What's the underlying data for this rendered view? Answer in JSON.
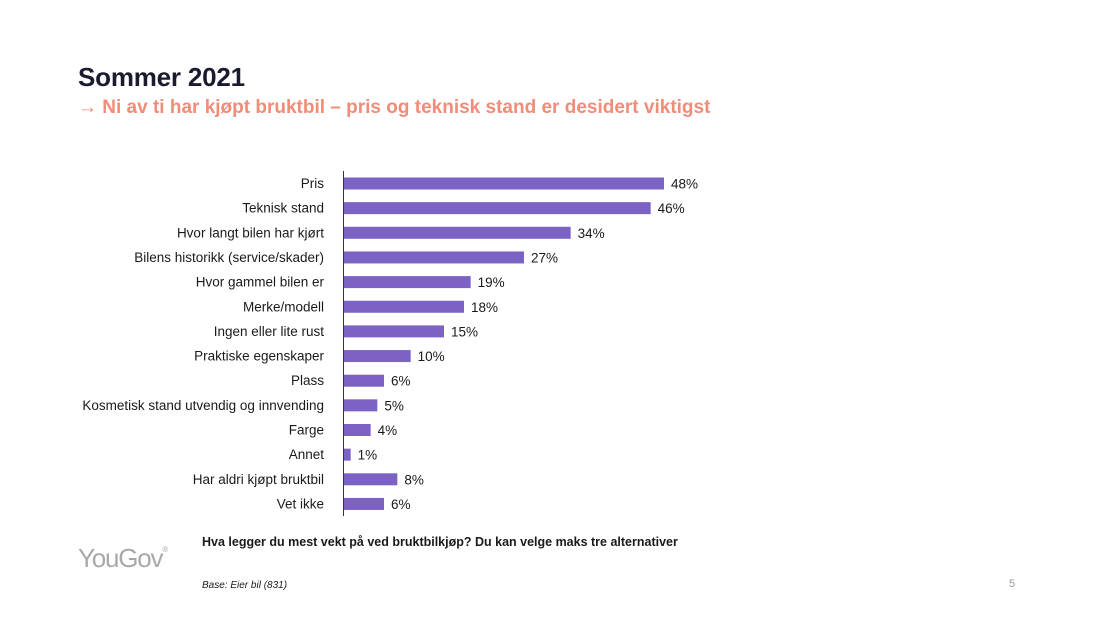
{
  "header": {
    "title": "Sommer 2021",
    "subtitle": "→ Ni av ti har kjøpt bruktbil – pris og teknisk stand er desidert viktigst"
  },
  "chart_data": {
    "type": "bar",
    "orientation": "horizontal",
    "categories": [
      "Pris",
      "Teknisk stand",
      "Hvor langt bilen har kjørt",
      "Bilens historikk (service/skader)",
      "Hvor gammel bilen er",
      "Merke/modell",
      "Ingen eller lite rust",
      "Praktiske egenskaper",
      "Plass",
      "Kosmetisk stand utvendig og innvending",
      "Farge",
      "Annet",
      "Har aldri kjøpt bruktbil",
      "Vet ikke"
    ],
    "values": [
      48,
      46,
      34,
      27,
      19,
      18,
      15,
      10,
      6,
      5,
      4,
      1,
      8,
      6
    ],
    "value_labels": [
      "48%",
      "46%",
      "34%",
      "27%",
      "19%",
      "18%",
      "15%",
      "10%",
      "6%",
      "5%",
      "4%",
      "1%",
      "8%",
      "6%"
    ],
    "unit": "%",
    "bar_color": "#7b62c4",
    "title": "",
    "xlabel": "",
    "ylabel": "",
    "xlim": [
      0,
      48
    ],
    "grid": false,
    "legend": "none"
  },
  "footer": {
    "question": "Hva legger du mest vekt på ved bruktbilkjøp? Du kan velge maks tre alternativer",
    "base": "Base: Eier bil (831)",
    "page_number": "5",
    "logo_text": "YouGov",
    "logo_mark": "®"
  },
  "colors": {
    "title": "#1b1b2f",
    "subtitle": "#f08c78",
    "bar": "#7b62c4",
    "logo": "#a9a9a9"
  }
}
